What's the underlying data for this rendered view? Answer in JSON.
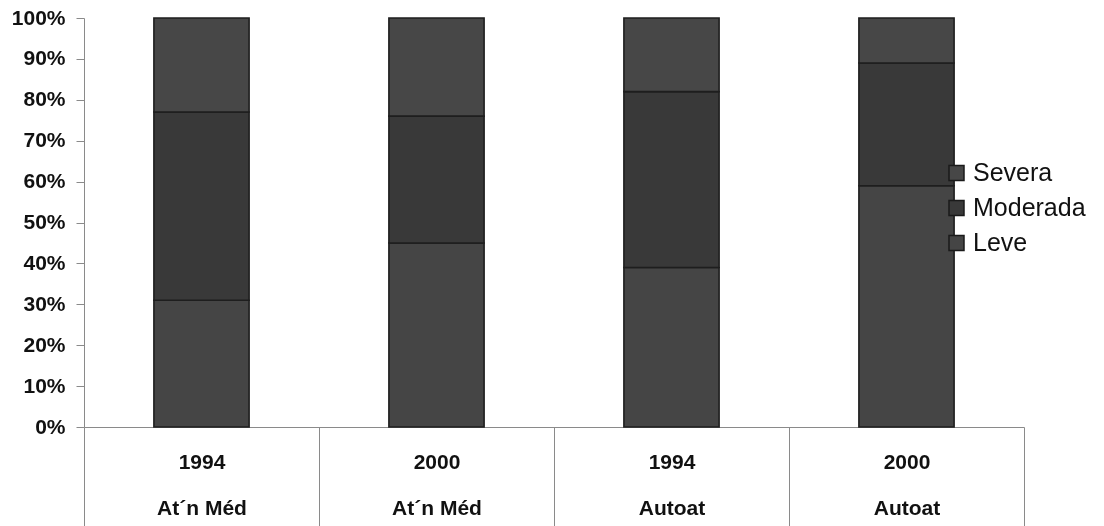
{
  "chart_data": {
    "type": "bar",
    "stacked": true,
    "categories": [
      "1994\nAt´n Méd",
      "2000\nAt´n Méd",
      "1994\nAutoat",
      "2000\nAutoat"
    ],
    "series": [
      {
        "name": "Leve",
        "color": "#454545",
        "values": [
          31,
          45,
          39,
          59
        ]
      },
      {
        "name": "Moderada",
        "color": "#393939",
        "values": [
          46,
          31,
          43,
          30
        ]
      },
      {
        "name": "Severa",
        "color": "#474747",
        "values": [
          23,
          24,
          18,
          11
        ]
      }
    ],
    "ylim": [
      0,
      100
    ],
    "yticks": [
      {
        "value": 0,
        "label": "0%"
      },
      {
        "value": 10,
        "label": "10%"
      },
      {
        "value": 20,
        "label": "20%"
      },
      {
        "value": 30,
        "label": "30%"
      },
      {
        "value": 40,
        "label": "40%"
      },
      {
        "value": 50,
        "label": "50%"
      },
      {
        "value": 60,
        "label": "60%"
      },
      {
        "value": 70,
        "label": "70%"
      },
      {
        "value": 80,
        "label": "80%"
      },
      {
        "value": 90,
        "label": "90%"
      },
      {
        "value": 100,
        "label": "100%"
      }
    ],
    "grid": false,
    "legend": "right"
  }
}
